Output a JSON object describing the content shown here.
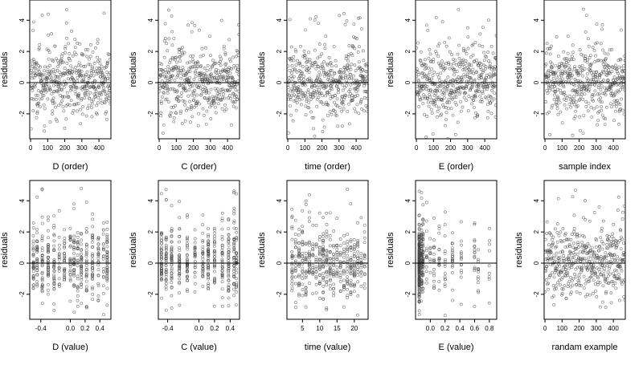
{
  "chart_data": [
    {
      "type": "scatter",
      "panel": "D (order)",
      "xlabel": "D (order)",
      "ylabel": "residuals",
      "xlim": [
        -5,
        470
      ],
      "ylim": [
        -3.6,
        5.3
      ],
      "xticks": [
        0,
        100,
        200,
        300,
        400
      ],
      "yticks": [
        -2,
        0,
        2,
        4
      ],
      "reference_line_y": 0,
      "n_points": 470,
      "x_kind": "index",
      "point_color": "#444444"
    },
    {
      "type": "scatter",
      "panel": "C (order)",
      "xlabel": "C (order)",
      "ylabel": "residuals",
      "xlim": [
        -5,
        470
      ],
      "ylim": [
        -3.6,
        5.3
      ],
      "xticks": [
        0,
        100,
        200,
        300,
        400
      ],
      "yticks": [
        -2,
        0,
        2,
        4
      ],
      "reference_line_y": 0,
      "n_points": 470,
      "x_kind": "index",
      "point_color": "#444444"
    },
    {
      "type": "scatter",
      "panel": "time (order)",
      "xlabel": "time (order)",
      "ylabel": "residuals",
      "xlim": [
        -5,
        470
      ],
      "ylim": [
        -3.6,
        5.3
      ],
      "xticks": [
        0,
        100,
        200,
        300,
        400
      ],
      "yticks": [
        -2,
        0,
        2,
        4
      ],
      "reference_line_y": 0,
      "n_points": 470,
      "x_kind": "index",
      "point_color": "#444444"
    },
    {
      "type": "scatter",
      "panel": "E (order)",
      "xlabel": "E (order)",
      "ylabel": "residuals",
      "xlim": [
        -5,
        470
      ],
      "ylim": [
        -3.6,
        5.3
      ],
      "xticks": [
        0,
        100,
        200,
        300,
        400
      ],
      "yticks": [
        -2,
        0,
        2,
        4
      ],
      "reference_line_y": 0,
      "n_points": 470,
      "x_kind": "index",
      "point_color": "#444444"
    },
    {
      "type": "scatter",
      "panel": "sample index",
      "xlabel": "sample index",
      "ylabel": "residuals",
      "xlim": [
        -5,
        470
      ],
      "ylim": [
        -3.6,
        5.3
      ],
      "xticks": [
        0,
        100,
        200,
        300,
        400
      ],
      "yticks": [
        -2,
        0,
        2,
        4
      ],
      "reference_line_y": 0,
      "n_points": 470,
      "x_kind": "index",
      "point_color": "#444444"
    },
    {
      "type": "scatter",
      "panel": "D (value)",
      "xlabel": "D (value)",
      "ylabel": "residuals",
      "xlim": [
        -0.55,
        0.55
      ],
      "ylim": [
        -3.6,
        5.3
      ],
      "xticks": [
        -0.4,
        0.0,
        0.2,
        0.4
      ],
      "xtick_labels": [
        "-0.4",
        "0.0",
        "0.2",
        "0.4"
      ],
      "yticks": [
        -2,
        0,
        2,
        4
      ],
      "reference_line_y": 0,
      "n_points": 470,
      "x_kind": "clustered",
      "x_levels": [
        -0.5,
        -0.45,
        -0.38,
        -0.3,
        -0.22,
        -0.15,
        -0.08,
        0.0,
        0.05,
        0.1,
        0.15,
        0.22,
        0.3,
        0.38,
        0.45,
        0.5
      ],
      "point_color": "#444444"
    },
    {
      "type": "scatter",
      "panel": "C (value)",
      "xlabel": "C (value)",
      "ylabel": "residuals",
      "xlim": [
        -0.52,
        0.52
      ],
      "ylim": [
        -3.6,
        5.3
      ],
      "xticks": [
        -0.4,
        0.0,
        0.2,
        0.4
      ],
      "xtick_labels": [
        "-0.4",
        "0.0",
        "0.2",
        "0.4"
      ],
      "yticks": [
        -2,
        0,
        2,
        4
      ],
      "reference_line_y": 0,
      "n_points": 470,
      "x_kind": "clustered",
      "x_levels": [
        -0.48,
        -0.42,
        -0.35,
        -0.25,
        -0.15,
        -0.05,
        0.05,
        0.12,
        0.2,
        0.3,
        0.38,
        0.45,
        0.48
      ],
      "point_color": "#444444"
    },
    {
      "type": "scatter",
      "panel": "time (value)",
      "xlabel": "time (value)",
      "ylabel": "residuals",
      "xlim": [
        0.5,
        24
      ],
      "ylim": [
        -3.6,
        5.3
      ],
      "xticks": [
        5,
        10,
        15,
        20
      ],
      "xtick_labels": [
        "5",
        "10",
        "15",
        "20"
      ],
      "yticks": [
        -2,
        0,
        2,
        4
      ],
      "reference_line_y": 0,
      "n_points": 470,
      "x_kind": "clustered",
      "x_levels": [
        2,
        3,
        4,
        5,
        6,
        7,
        8,
        9,
        10,
        11,
        12,
        13,
        14,
        15,
        16,
        17,
        18,
        19,
        20,
        21,
        22,
        23
      ],
      "point_color": "#444444"
    },
    {
      "type": "scatter",
      "panel": "E (value)",
      "xlabel": "E (value)",
      "ylabel": "residuals",
      "xlim": [
        -0.2,
        0.9
      ],
      "ylim": [
        -3.6,
        5.3
      ],
      "xticks": [
        0.0,
        0.2,
        0.4,
        0.6,
        0.8
      ],
      "xtick_labels": [
        "0.0",
        "0.2",
        "0.4",
        "0.6",
        "0.8"
      ],
      "yticks": [
        -2,
        0,
        2,
        4
      ],
      "reference_line_y": 0,
      "n_points": 470,
      "x_kind": "clustered",
      "x_levels": [
        -0.15,
        -0.12,
        -0.1,
        -0.05,
        0.0,
        0.05,
        0.12,
        0.2,
        0.3,
        0.42,
        0.6,
        0.65,
        0.8
      ],
      "point_color": "#444444"
    },
    {
      "type": "scatter",
      "panel": "randam example",
      "xlabel": "randam example",
      "ylabel": "residuals",
      "xlim": [
        -5,
        470
      ],
      "ylim": [
        -3.6,
        5.3
      ],
      "xticks": [
        0,
        100,
        200,
        300,
        400
      ],
      "yticks": [
        -2,
        0,
        2,
        4
      ],
      "reference_line_y": 0,
      "n_points": 470,
      "x_kind": "index",
      "point_color": "#444444"
    }
  ]
}
